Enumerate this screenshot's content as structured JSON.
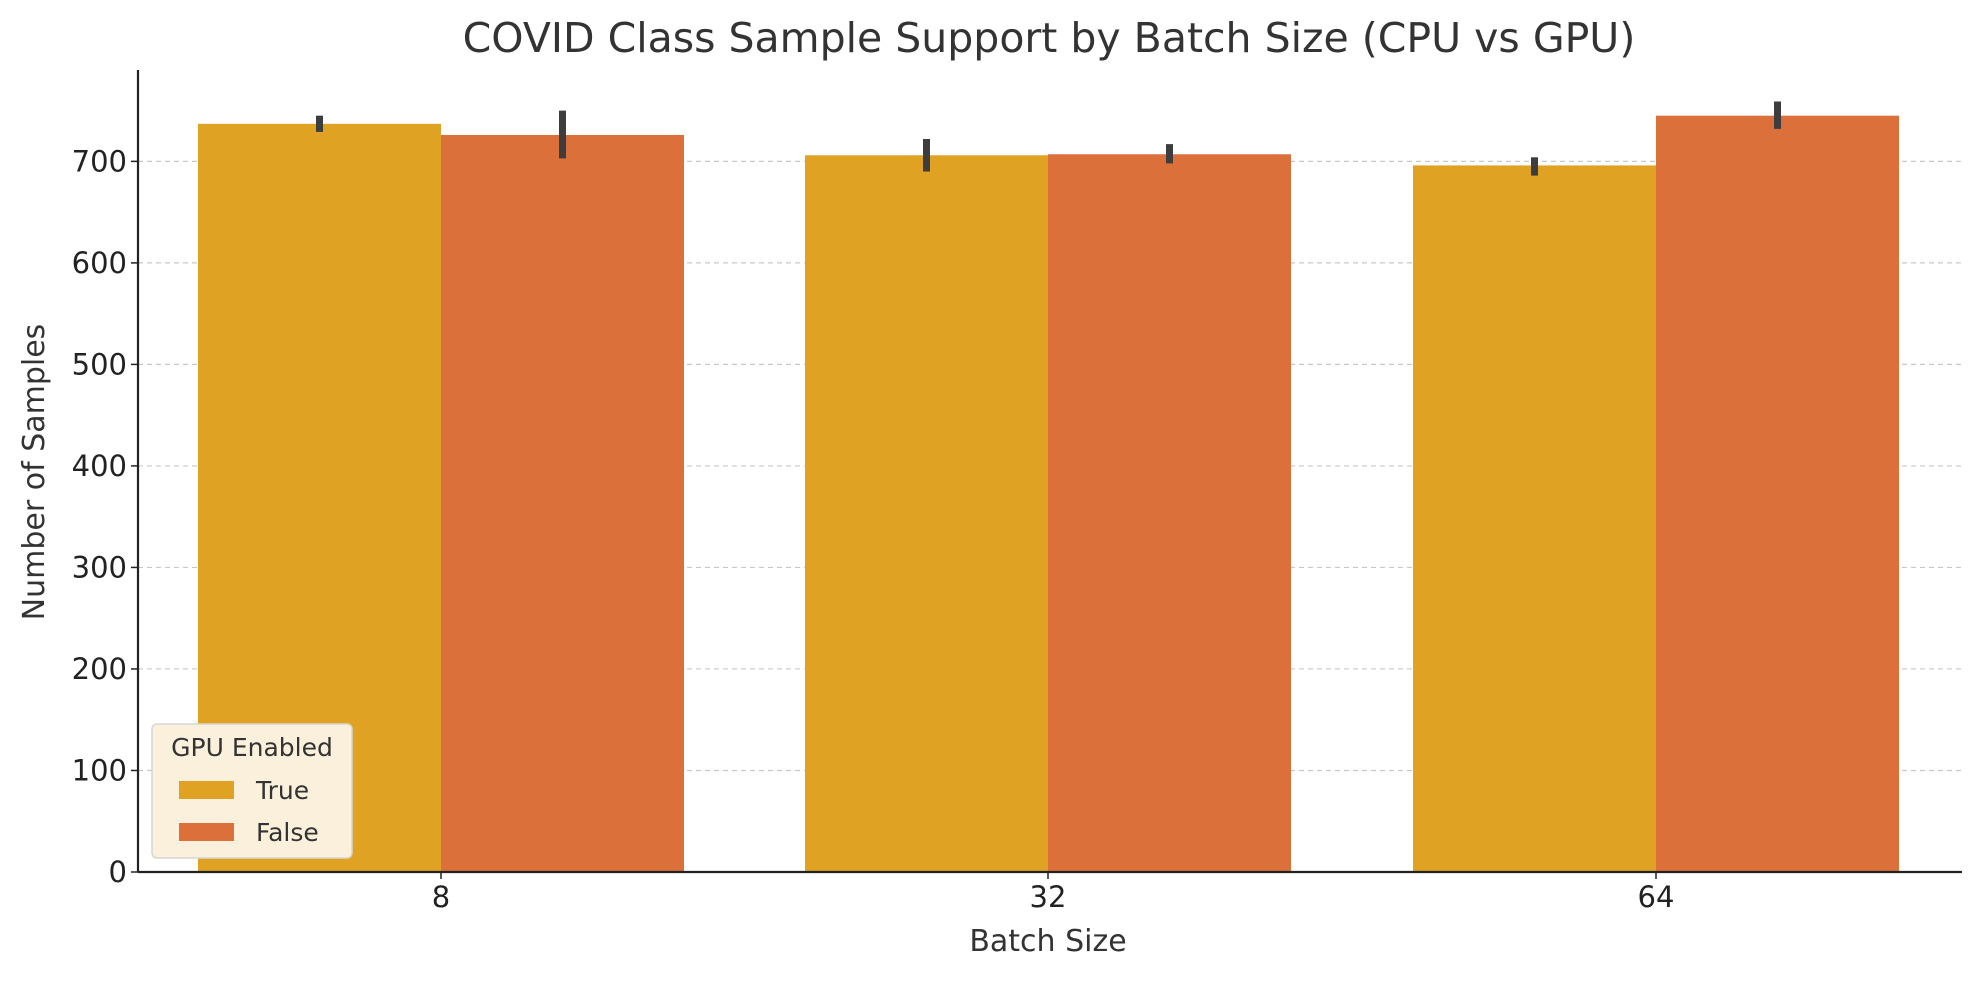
{
  "chart_data": {
    "type": "bar",
    "title": "COVID Class Sample Support by Batch Size (CPU vs GPU)",
    "xlabel": "Batch Size",
    "ylabel": "Number of Samples",
    "categories": [
      "8",
      "32",
      "64"
    ],
    "ylim": [
      0,
      790
    ],
    "yticks": [
      0,
      100,
      200,
      300,
      400,
      500,
      600,
      700
    ],
    "grid": "y-dashed",
    "legend": {
      "title": "GPU Enabled",
      "placement": "lower-left"
    },
    "series": [
      {
        "name": "True",
        "color": "#E0A222",
        "values": [
          737,
          706,
          696
        ],
        "error_low": [
          729,
          690,
          686
        ],
        "error_high": [
          745,
          722,
          704
        ]
      },
      {
        "name": "False",
        "color": "#DC703A",
        "values": [
          726,
          707,
          745
        ],
        "error_low": [
          703,
          698,
          732
        ],
        "error_high": [
          750,
          717,
          759
        ]
      }
    ]
  }
}
